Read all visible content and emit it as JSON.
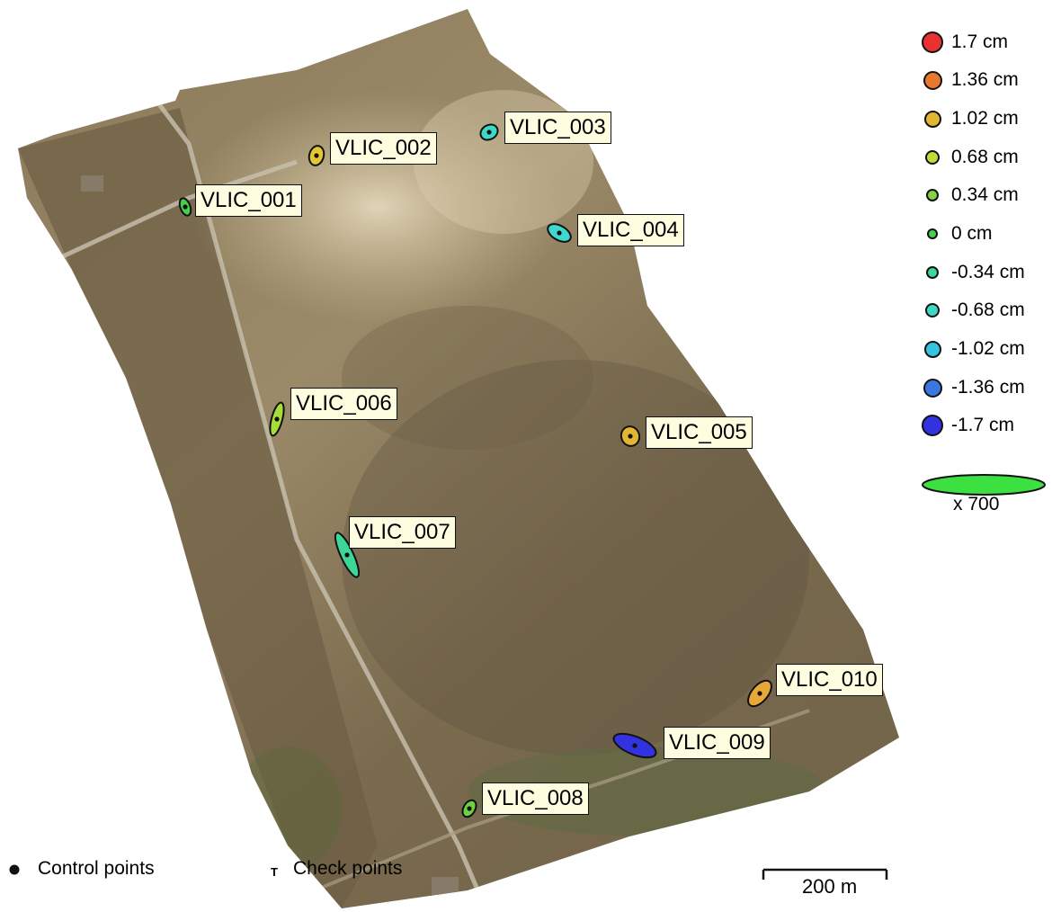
{
  "legend": {
    "scale_items": [
      {
        "label": "1.7 cm",
        "color": "#e83232"
      },
      {
        "label": "1.36 cm",
        "color": "#e8782e"
      },
      {
        "label": "1.02 cm",
        "color": "#e3b632"
      },
      {
        "label": "0.68 cm",
        "color": "#c4da3a"
      },
      {
        "label": "0.34 cm",
        "color": "#84d444"
      },
      {
        "label": "0 cm",
        "color": "#44d04a"
      },
      {
        "label": "-0.34 cm",
        "color": "#3cd698"
      },
      {
        "label": "-0.68 cm",
        "color": "#3ed8c6"
      },
      {
        "label": "-1.02 cm",
        "color": "#34c4e0"
      },
      {
        "label": "-1.36 cm",
        "color": "#3a78e0"
      },
      {
        "label": "-1.7 cm",
        "color": "#3232e0"
      }
    ],
    "ellipse_scale": "x 700",
    "ellipse_color": "#3ce040"
  },
  "points": [
    {
      "name": "VLIC_001",
      "color": "#44d04a"
    },
    {
      "name": "VLIC_002",
      "color": "#e3c632"
    },
    {
      "name": "VLIC_003",
      "color": "#3ed8c6"
    },
    {
      "name": "VLIC_004",
      "color": "#3ed8d0"
    },
    {
      "name": "VLIC_005",
      "color": "#e3b632"
    },
    {
      "name": "VLIC_006",
      "color": "#a8dc3a"
    },
    {
      "name": "VLIC_007",
      "color": "#3cd698"
    },
    {
      "name": "VLIC_008",
      "color": "#6cd244"
    },
    {
      "name": "VLIC_009",
      "color": "#3232e0"
    },
    {
      "name": "VLIC_010",
      "color": "#e8a838"
    }
  ],
  "bottom_legend": {
    "control_points": "Control points",
    "check_points": "Check points",
    "check_symbol": "T"
  },
  "scale_bar": {
    "label": "200 m"
  }
}
